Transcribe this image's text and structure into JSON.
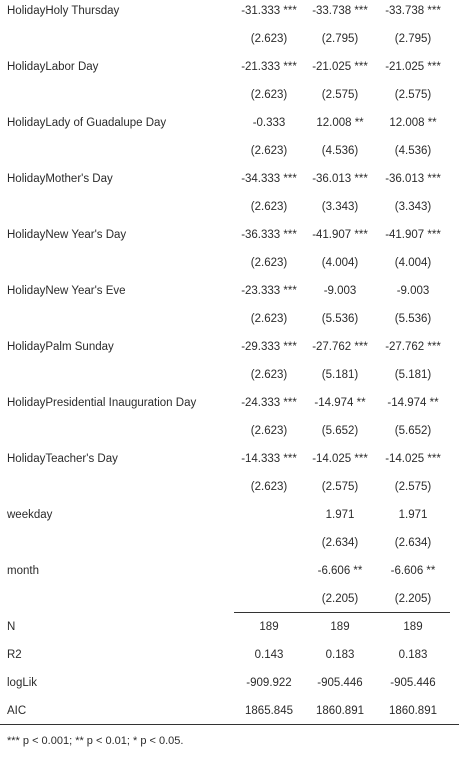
{
  "rows": [
    {
      "label": "HolidayHoly Thursday",
      "c1": "-31.333 ***",
      "c2": "-33.738 ***",
      "c3": "-33.738 ***"
    },
    {
      "label": "",
      "c1": "(2.623)",
      "c2": "(2.795)",
      "c3": "(2.795)"
    },
    {
      "label": "HolidayLabor Day",
      "c1": "-21.333 ***",
      "c2": "-21.025 ***",
      "c3": "-21.025 ***"
    },
    {
      "label": "",
      "c1": "(2.623)",
      "c2": "(2.575)",
      "c3": "(2.575)"
    },
    {
      "label": "HolidayLady of Guadalupe Day",
      "c1": "-0.333",
      "c2": "12.008 **",
      "c3": "12.008 **"
    },
    {
      "label": "",
      "c1": "(2.623)",
      "c2": "(4.536)",
      "c3": "(4.536)"
    },
    {
      "label": "HolidayMother's Day",
      "c1": "-34.333 ***",
      "c2": "-36.013 ***",
      "c3": "-36.013 ***"
    },
    {
      "label": "",
      "c1": "(2.623)",
      "c2": "(3.343)",
      "c3": "(3.343)"
    },
    {
      "label": "HolidayNew Year's Day",
      "c1": "-36.333 ***",
      "c2": "-41.907 ***",
      "c3": "-41.907 ***"
    },
    {
      "label": "",
      "c1": "(2.623)",
      "c2": "(4.004)",
      "c3": "(4.004)"
    },
    {
      "label": "HolidayNew Year's Eve",
      "c1": "-23.333 ***",
      "c2": "-9.003",
      "c3": "-9.003"
    },
    {
      "label": "",
      "c1": "(2.623)",
      "c2": "(5.536)",
      "c3": "(5.536)"
    },
    {
      "label": "HolidayPalm Sunday",
      "c1": "-29.333 ***",
      "c2": "-27.762 ***",
      "c3": "-27.762 ***"
    },
    {
      "label": "",
      "c1": "(2.623)",
      "c2": "(5.181)",
      "c3": "(5.181)"
    },
    {
      "label": "HolidayPresidential Inauguration Day",
      "c1": "-24.333 ***",
      "c2": "-14.974 **",
      "c3": "-14.974 **"
    },
    {
      "label": "",
      "c1": "(2.623)",
      "c2": "(5.652)",
      "c3": "(5.652)"
    },
    {
      "label": "HolidayTeacher's Day",
      "c1": "-14.333 ***",
      "c2": "-14.025 ***",
      "c3": "-14.025 ***"
    },
    {
      "label": "",
      "c1": "(2.623)",
      "c2": "(2.575)",
      "c3": "(2.575)"
    },
    {
      "label": "weekday",
      "c1": "",
      "c2": "1.971",
      "c3": "1.971"
    },
    {
      "label": "",
      "c1": "",
      "c2": "(2.634)",
      "c3": "(2.634)"
    },
    {
      "label": "month",
      "c1": "",
      "c2": "-6.606 **",
      "c3": "-6.606 **"
    },
    {
      "label": "",
      "c1": "",
      "c2": "(2.205)",
      "c3": "(2.205)"
    }
  ],
  "stats": [
    {
      "label": "N",
      "c1": "189",
      "c2": "189",
      "c3": "189"
    },
    {
      "label": "R2",
      "c1": "0.143",
      "c2": "0.183",
      "c3": "0.183"
    },
    {
      "label": "logLik",
      "c1": "-909.922",
      "c2": "-905.446",
      "c3": "-905.446"
    },
    {
      "label": "AIC",
      "c1": "1865.845",
      "c2": "1860.891",
      "c3": "1860.891"
    }
  ],
  "footnote": "*** p < 0.001; ** p < 0.01; * p < 0.05."
}
